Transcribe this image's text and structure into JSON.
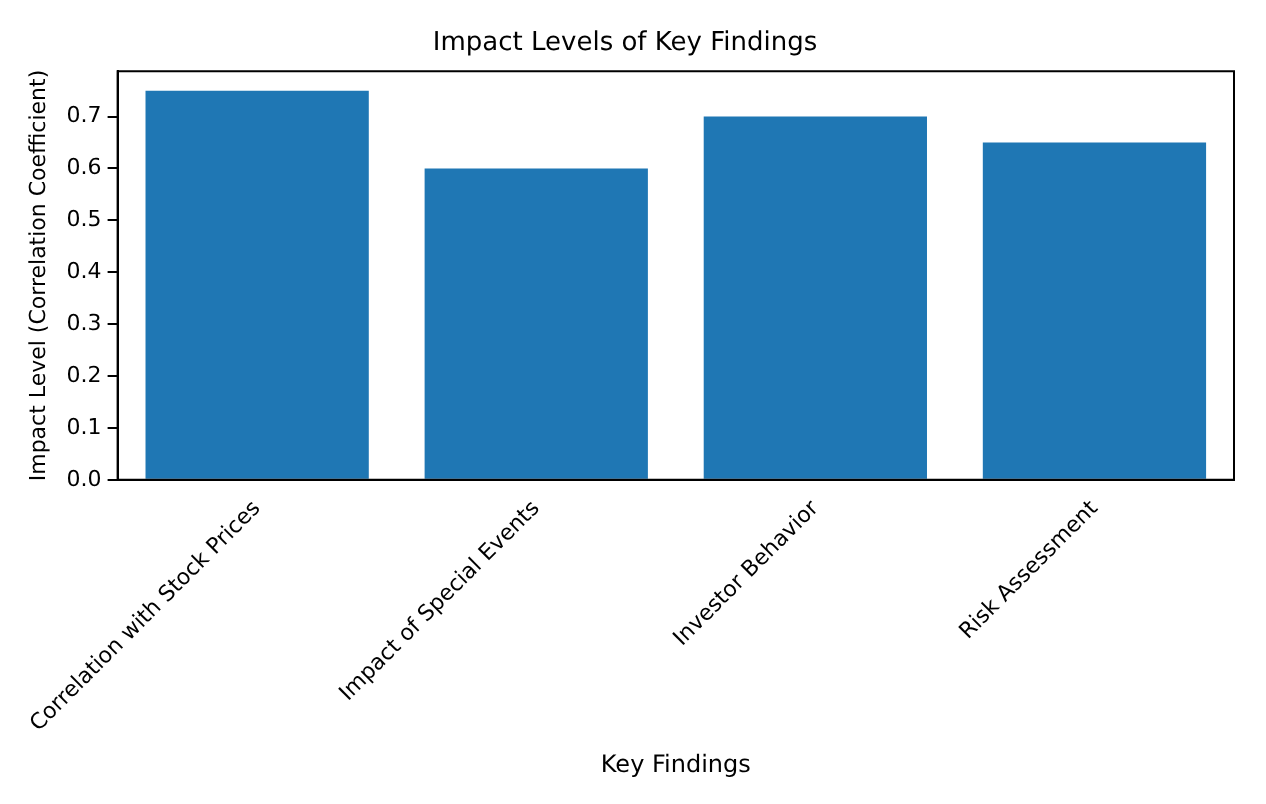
{
  "chart_data": {
    "type": "bar",
    "title": "Impact Levels of Key Findings",
    "xlabel": "Key Findings",
    "ylabel": "Impact Level (Correlation Coefficient)",
    "categories": [
      "Correlation with Stock Prices",
      "Impact of Special Events",
      "Investor Behavior",
      "Risk Assessment"
    ],
    "values": [
      0.75,
      0.6,
      0.7,
      0.65
    ],
    "color": "#1f77b4",
    "ylim": [
      0,
      0.7875
    ],
    "yticks": [
      {
        "value": 0,
        "label": "0.0"
      },
      {
        "value": 0.1,
        "label": "0.1"
      },
      {
        "value": 0.2,
        "label": "0.2"
      },
      {
        "value": 0.3,
        "label": "0.3"
      },
      {
        "value": 0.4,
        "label": "0.4"
      },
      {
        "value": 0.5,
        "label": "0.5"
      },
      {
        "value": 0.6,
        "label": "0.6"
      },
      {
        "value": 0.7,
        "label": "0.7"
      }
    ],
    "grid": false,
    "legend": false
  }
}
